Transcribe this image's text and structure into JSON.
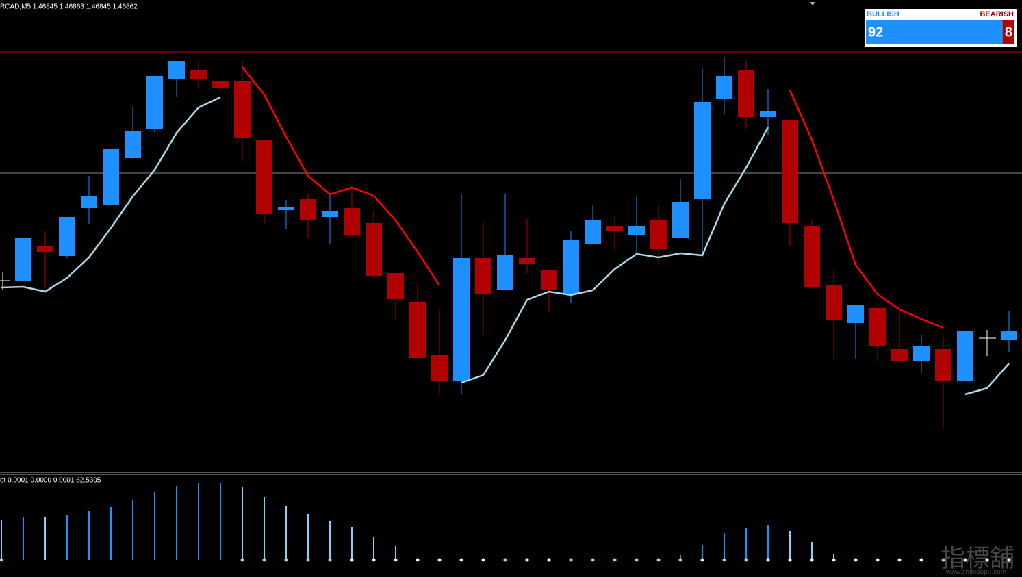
{
  "header": {
    "symbol_line": "RCAD,M5  1.46845 1.46863 1.46845 1.46862"
  },
  "widget": {
    "bull_label": "BULLISH",
    "bear_label": "BEARISH",
    "bull_value": 92,
    "bear_value": 8,
    "bull_color": "#1e90ff",
    "bear_color": "#b00000"
  },
  "watermark": {
    "title": "指標舖",
    "url": "www.zhibiaopu.com"
  },
  "chart_data": [
    {
      "type": "candlestick",
      "ylim": [
        0,
        690
      ],
      "categories": [
        null,
        null,
        null,
        null,
        null,
        null,
        null,
        null,
        null,
        null,
        null,
        null,
        null,
        null,
        null,
        null,
        null,
        null,
        null,
        null,
        null,
        null,
        null,
        null,
        null,
        null,
        null,
        null,
        null,
        null,
        null,
        null,
        null,
        null,
        null,
        null,
        null,
        null,
        null,
        null,
        null,
        null,
        null,
        null,
        null,
        null,
        null
      ],
      "up_color": "#1e90ff",
      "down_color": "#b00000",
      "open": [
        null,
        279,
        330,
        316,
        386,
        390,
        459,
        502,
        575,
        588,
        571,
        571,
        485,
        383,
        399,
        373,
        386,
        364,
        291,
        249,
        171,
        133,
        313,
        266,
        313,
        296,
        261,
        334,
        360,
        347,
        369,
        343,
        399,
        545,
        588,
        519,
        515,
        360,
        274,
        218,
        240,
        180,
        163,
        180,
        133,
        null,
        193
      ],
      "high": [
        null,
        343,
        352,
        373,
        433,
        472,
        533,
        579,
        601,
        602,
        571,
        602,
        485,
        398,
        407,
        405,
        418,
        382,
        291,
        277,
        239,
        407,
        365,
        407,
        370,
        296,
        352,
        390,
        373,
        403,
        390,
        429,
        590,
        607,
        602,
        560,
        515,
        369,
        295,
        244,
        240,
        240,
        201,
        197,
        206,
        null,
        236
      ],
      "low": [
        null,
        279,
        270,
        313,
        363,
        390,
        457,
        495,
        548,
        562,
        555,
        455,
        363,
        356,
        343,
        333,
        347,
        282,
        223,
        163,
        115,
        115,
        200,
        266,
        291,
        235,
        248,
        334,
        325,
        317,
        304,
        343,
        317,
        523,
        502,
        493,
        330,
        270,
        166,
        166,
        163,
        163,
        145,
        63,
        133,
        null,
        176
      ],
      "close": [
        null,
        343,
        322,
        373,
        403,
        472,
        498,
        579,
        601,
        575,
        562,
        489,
        377,
        387,
        369,
        382,
        347,
        287,
        253,
        167,
        133,
        313,
        261,
        317,
        304,
        266,
        339,
        369,
        352,
        360,
        326,
        395,
        541,
        579,
        519,
        528,
        364,
        270,
        223,
        244,
        184,
        163,
        184,
        133,
        206,
        null,
        206
      ],
      "series": [
        {
          "color": "#add8e6",
          "values": [
            270,
            271,
            264,
            284,
            314,
            357,
            403,
            442,
            496,
            533,
            548,
            null,
            null,
            null,
            null,
            null,
            null,
            null,
            null,
            null,
            null,
            131,
            142,
            193,
            252,
            264,
            259,
            266,
            297,
            319,
            314,
            320,
            317,
            392,
            445,
            504,
            null,
            null,
            null,
            null,
            null,
            null,
            null,
            null,
            114,
            123,
            159
          ]
        },
        {
          "color": "#ff0000",
          "values": [
            null,
            null,
            null,
            null,
            null,
            null,
            null,
            null,
            null,
            null,
            null,
            592,
            552,
            490,
            433,
            406,
            416,
            404,
            368,
            322,
            273,
            null,
            null,
            null,
            null,
            null,
            null,
            null,
            null,
            null,
            null,
            null,
            null,
            null,
            null,
            null,
            558,
            486,
            398,
            303,
            260,
            238,
            224,
            211,
            null,
            null,
            null
          ]
        }
      ]
    },
    {
      "type": "bar",
      "title": "ot 0.0001 0.0000 0.0001 62.5305",
      "ylim": [
        0,
        125
      ],
      "values": [
        58,
        63,
        63,
        66,
        71,
        78,
        87,
        99,
        108,
        113,
        113,
        107,
        92,
        79,
        67,
        57,
        48,
        34,
        20,
        null,
        null,
        null,
        null,
        null,
        null,
        null,
        null,
        null,
        null,
        null,
        null,
        7,
        22,
        39,
        47,
        51,
        42,
        26,
        9,
        null,
        null,
        null,
        null,
        null,
        null,
        null,
        null
      ],
      "colors": [
        "#87cefa",
        "#1e90ff",
        "#87cefa",
        "#1e90ff",
        "#1e90ff",
        "#1e90ff",
        "#1e90ff",
        "#1e90ff",
        "#1e90ff",
        "#1e90ff",
        "#1e90ff",
        "#87cefa",
        "#87cefa",
        "#87cefa",
        "#87cefa",
        "#87cefa",
        "#87cefa",
        "#87cefa",
        "#87cefa",
        null,
        null,
        null,
        null,
        null,
        null,
        null,
        null,
        null,
        null,
        null,
        null,
        "#1e90ff",
        "#1e90ff",
        "#1e90ff",
        "#1e90ff",
        "#1e90ff",
        "#87cefa",
        "#87cefa",
        "#87cefa",
        null,
        null,
        null,
        null,
        null,
        null,
        null,
        null
      ],
      "dot_colors": [
        "#90ee90",
        null,
        null,
        null,
        null,
        null,
        null,
        null,
        null,
        null,
        null,
        "#90ee90",
        "#90ee90",
        "#90ee90",
        "#90ee90",
        "#90ee90",
        "#ffffff",
        "#ffffff",
        "#ffffff",
        "#ffffff",
        "#ffffff",
        "#ffffff",
        "#ffffff",
        "#90ee90",
        "#ffffff",
        "#ffffff",
        "#90ee90",
        "#90ee90",
        "#90ee90",
        "#90ee90",
        "#90ee90",
        "#90ee90",
        "#ffffff",
        "#90ee90",
        "#90ee90",
        "#ffffff",
        "#ffffff",
        "#ffffff",
        "#ffffff",
        "#ffffff",
        "#ffffff",
        "#ffffff",
        "#ffffff",
        "#ffffff",
        "#ffffff",
        "#ffffff",
        "#ffffff"
      ]
    }
  ]
}
